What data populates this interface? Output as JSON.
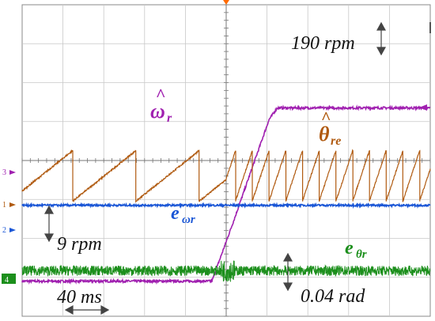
{
  "chart_data": {
    "type": "line",
    "title": "",
    "xlabel": "",
    "ylabel": "",
    "grid": true,
    "divisions": {
      "horizontal": 10,
      "vertical": 8
    },
    "time_scale_label": "40 ms",
    "annotations": {
      "speed_step": "190 rpm",
      "speed_error_scale": "9 rpm",
      "angle_error_scale": "0.04 rad"
    },
    "channel_markers": [
      "3",
      "1",
      "2",
      "4"
    ],
    "traces": [
      {
        "key": "wr",
        "color": "#a020b0",
        "label_main": "ω",
        "label_hat": "^",
        "label_sub": "r",
        "description_values": {
          "x_div": [
            0,
            4.65,
            5.2,
            6.05,
            6.25,
            10
          ],
          "level_div": [
            0.9,
            0.9,
            2.5,
            5.05,
            5.35,
            5.35
          ]
        }
      },
      {
        "key": "thre",
        "color": "#b05a10",
        "label_main": "θ",
        "label_hat": "^",
        "label_sub": "re",
        "sawtooth": {
          "before_step_period_div": 1.55,
          "after_step_period_div": 0.41
        }
      },
      {
        "key": "ewr",
        "color": "#1a56d6",
        "label_main": "e",
        "label_sub": "ωr"
      },
      {
        "key": "ethr",
        "color": "#1c8f1c",
        "label_main": "e",
        "label_sub": "θr"
      }
    ]
  }
}
